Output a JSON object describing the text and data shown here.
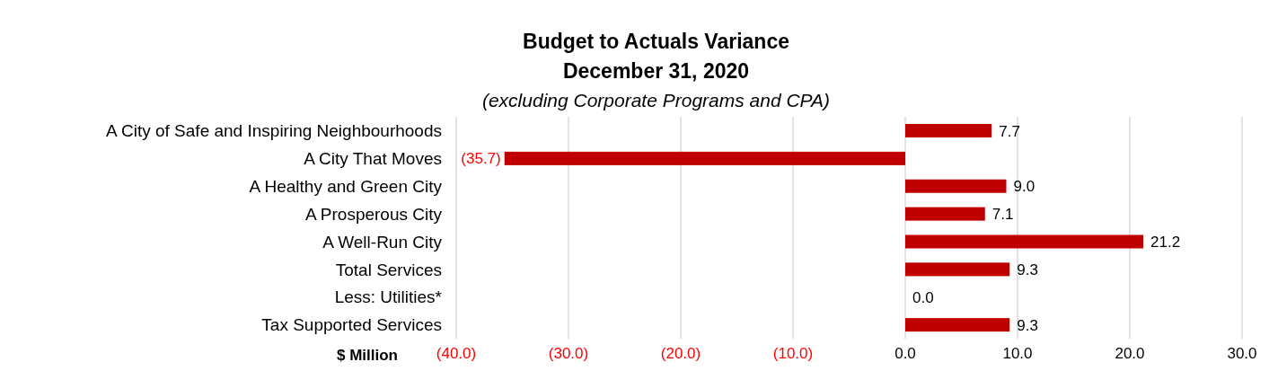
{
  "chart_data": {
    "type": "bar",
    "orientation": "horizontal",
    "title": "Budget to Actuals Variance\nDecember 31, 2020",
    "subtitle": "(excluding Corporate Programs and CPA)",
    "xlabel": "$ Million",
    "categories": [
      "A City of Safe and Inspiring Neighbourhoods",
      "A City That Moves",
      "A Healthy and Green City",
      "A Prosperous City",
      "A Well-Run City",
      "Total Services",
      "Less: Utilities*",
      "Tax Supported Services"
    ],
    "values": [
      7.7,
      -35.7,
      9.0,
      7.1,
      21.2,
      9.3,
      0.0,
      9.3
    ],
    "value_labels": [
      "7.7",
      "(35.7)",
      "9.0",
      "7.1",
      "21.2",
      "9.3",
      "0.0",
      "9.3"
    ],
    "color": "#c00000",
    "xlim": [
      -40,
      30
    ],
    "xticks": [
      {
        "value": -40,
        "label": "(40.0)"
      },
      {
        "value": -30,
        "label": "(30.0)"
      },
      {
        "value": -20,
        "label": "(20.0)"
      },
      {
        "value": -10,
        "label": "(10.0)"
      },
      {
        "value": 0,
        "label": "0.0"
      },
      {
        "value": 10,
        "label": "10.0"
      },
      {
        "value": 20,
        "label": "20.0"
      },
      {
        "value": 30,
        "label": "30.0"
      }
    ],
    "grid": "x"
  }
}
